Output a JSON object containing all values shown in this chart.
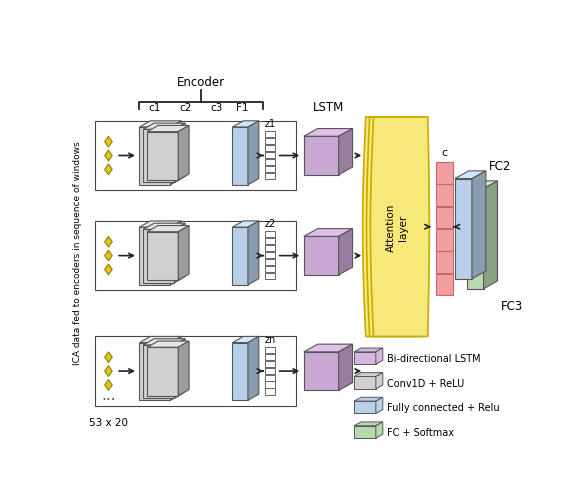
{
  "title": "Encoder",
  "ylabel": "ICA data fed to encoders in sequence of windows",
  "bottom_label": "53 x 20",
  "lstm_label": "LSTM",
  "attention_label": "Attention\nlayer",
  "c_label": "c",
  "fc2_label": "FC2",
  "fc3_label": "FC3",
  "z_labels": [
    "z1",
    "z2",
    "zn"
  ],
  "conv_labels": [
    "c1",
    "c2",
    "c3",
    "F1"
  ],
  "legend_items": [
    {
      "label": "Bi-directional LSTM",
      "color": "#d4b8e0"
    },
    {
      "label": "Conv1D + ReLU",
      "color": "#d0d0d0"
    },
    {
      "label": "Fully connected + Relu",
      "color": "#b8d0ea"
    },
    {
      "label": "FC + Softmax",
      "color": "#b8d8b0"
    }
  ],
  "colors": {
    "lstm_box": "#c9a8d4",
    "conv_box": "#d0d0d0",
    "fc_box": "#b8d0ea",
    "softmax_box": "#b8d8b0",
    "attention_face": "#f7e87a",
    "attention_border": "#c8aa00",
    "c_box": "#f0a0a0",
    "c_edge": "#cc6666",
    "diamond": "#e8c020",
    "diamond_edge": "#888800",
    "arrow": "#222222",
    "z_box": "#ffffff",
    "z_box_edge": "#666666",
    "bracket": "#222222",
    "row_border": "#444444"
  },
  "figsize": [
    5.7,
    5.02
  ],
  "dpi": 100
}
